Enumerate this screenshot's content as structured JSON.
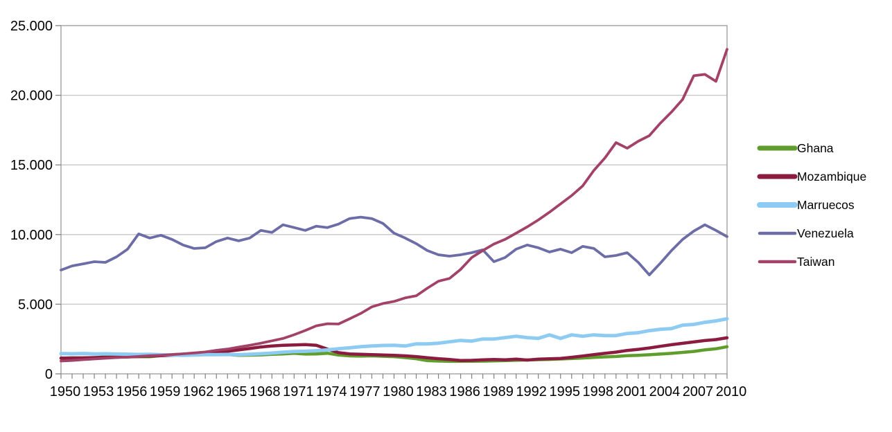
{
  "chart_data": {
    "type": "line",
    "title": "",
    "xlabel": "",
    "ylabel": "",
    "ylim": [
      0,
      25000
    ],
    "grid": "horizontal",
    "legend_position": "right",
    "background": "#ffffff",
    "axis_color": "#999999",
    "grid_color": "#c6c6c6",
    "tick_color": "#808080",
    "text_color": "#000000",
    "y_ticks": [
      0,
      5000,
      10000,
      15000,
      20000,
      25000
    ],
    "y_tick_labels": [
      "0",
      "5.000",
      "10.000",
      "15.000",
      "20.000",
      "25.000"
    ],
    "x": [
      1950,
      1951,
      1952,
      1953,
      1954,
      1955,
      1956,
      1957,
      1958,
      1959,
      1960,
      1961,
      1962,
      1963,
      1964,
      1965,
      1966,
      1967,
      1968,
      1969,
      1970,
      1971,
      1972,
      1973,
      1974,
      1975,
      1976,
      1977,
      1978,
      1979,
      1980,
      1981,
      1982,
      1983,
      1984,
      1985,
      1986,
      1987,
      1988,
      1989,
      1990,
      1991,
      1992,
      1993,
      1994,
      1995,
      1996,
      1997,
      1998,
      1999,
      2000,
      2001,
      2002,
      2003,
      2004,
      2005,
      2006,
      2007,
      2008,
      2009,
      2010
    ],
    "x_tick_labels": [
      "1950",
      "1953",
      "1956",
      "1959",
      "1962",
      "1965",
      "1968",
      "1971",
      "1974",
      "1977",
      "1980",
      "1983",
      "1986",
      "1989",
      "1992",
      "1995",
      "1998",
      "2001",
      "2004",
      "2007",
      "2010"
    ],
    "series": [
      {
        "name": "Ghana",
        "color": "#5f9e2c",
        "values": [
          1120,
          1150,
          1130,
          1160,
          1230,
          1200,
          1220,
          1240,
          1230,
          1310,
          1380,
          1400,
          1380,
          1400,
          1400,
          1390,
          1330,
          1340,
          1360,
          1400,
          1430,
          1480,
          1420,
          1430,
          1480,
          1350,
          1290,
          1270,
          1290,
          1260,
          1240,
          1170,
          1090,
          950,
          920,
          900,
          900,
          905,
          915,
          930,
          950,
          975,
          1000,
          1020,
          1040,
          1070,
          1100,
          1140,
          1180,
          1220,
          1250,
          1300,
          1330,
          1370,
          1420,
          1470,
          1540,
          1610,
          1720,
          1800,
          1950
        ]
      },
      {
        "name": "Mozambique",
        "color": "#8b1b3f",
        "values": [
          1130,
          1140,
          1150,
          1170,
          1190,
          1200,
          1220,
          1250,
          1270,
          1300,
          1330,
          1380,
          1430,
          1480,
          1550,
          1620,
          1720,
          1820,
          1930,
          2000,
          2050,
          2080,
          2100,
          2050,
          1780,
          1520,
          1430,
          1400,
          1380,
          1350,
          1330,
          1290,
          1240,
          1160,
          1090,
          1030,
          960,
          970,
          1010,
          1030,
          1010,
          1060,
          990,
          1060,
          1080,
          1110,
          1190,
          1280,
          1380,
          1470,
          1560,
          1680,
          1760,
          1860,
          1980,
          2090,
          2190,
          2290,
          2390,
          2460,
          2590
        ]
      },
      {
        "name": "Marruecos",
        "color": "#8ecbf2",
        "values": [
          1450,
          1440,
          1460,
          1430,
          1440,
          1420,
          1410,
          1390,
          1400,
          1370,
          1350,
          1330,
          1350,
          1380,
          1380,
          1390,
          1370,
          1400,
          1440,
          1490,
          1550,
          1600,
          1620,
          1660,
          1720,
          1800,
          1870,
          1950,
          2000,
          2040,
          2050,
          2000,
          2150,
          2150,
          2200,
          2300,
          2400,
          2350,
          2500,
          2500,
          2600,
          2700,
          2600,
          2550,
          2800,
          2550,
          2800,
          2700,
          2800,
          2750,
          2750,
          2900,
          2950,
          3100,
          3200,
          3250,
          3500,
          3550,
          3700,
          3800,
          3950
        ]
      },
      {
        "name": "Venezuela",
        "color": "#6c6ca6",
        "values": [
          7450,
          7750,
          7900,
          8050,
          8000,
          8400,
          8950,
          10050,
          9750,
          9950,
          9650,
          9250,
          9000,
          9050,
          9500,
          9750,
          9550,
          9750,
          10300,
          10150,
          10700,
          10500,
          10300,
          10600,
          10500,
          10750,
          11150,
          11250,
          11150,
          10800,
          10100,
          9750,
          9350,
          8850,
          8550,
          8450,
          8550,
          8700,
          8900,
          8050,
          8350,
          8950,
          9250,
          9050,
          8750,
          8950,
          8700,
          9150,
          9000,
          8400,
          8500,
          8700,
          8000,
          7100,
          7950,
          8850,
          9650,
          10250,
          10700,
          10300,
          9850
        ]
      },
      {
        "name": "Taiwan",
        "color": "#a34268",
        "values": [
          920,
          960,
          1020,
          1070,
          1120,
          1170,
          1200,
          1250,
          1300,
          1330,
          1380,
          1440,
          1500,
          1570,
          1690,
          1780,
          1920,
          2050,
          2200,
          2370,
          2540,
          2810,
          3110,
          3450,
          3600,
          3580,
          3950,
          4340,
          4810,
          5050,
          5200,
          5450,
          5600,
          6150,
          6650,
          6850,
          7500,
          8350,
          8850,
          9320,
          9650,
          10100,
          10550,
          11050,
          11600,
          12200,
          12800,
          13500,
          14600,
          15500,
          16600,
          16200,
          16700,
          17100,
          18000,
          18800,
          19700,
          21400,
          21500,
          21000,
          23300
        ]
      }
    ]
  }
}
